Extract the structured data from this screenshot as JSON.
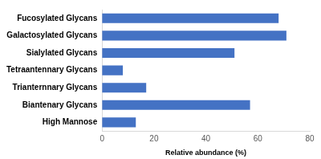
{
  "chart_data": {
    "type": "bar",
    "orientation": "horizontal",
    "categories": [
      "Fucosylated Glycans",
      "Galactosylated Glycans",
      "Sialylated Glycans",
      "Tetraantennary Glycans",
      "Trianternnary Glycans",
      "Biantenary Glycans",
      "High Mannose"
    ],
    "values": [
      68,
      71,
      51,
      8,
      17,
      57,
      13
    ],
    "color": "#4472c4",
    "x_label": "Relative abundance (%)",
    "xlim": [
      0,
      80
    ],
    "xticks": [
      0,
      20,
      40,
      60,
      80
    ],
    "grid": false
  }
}
